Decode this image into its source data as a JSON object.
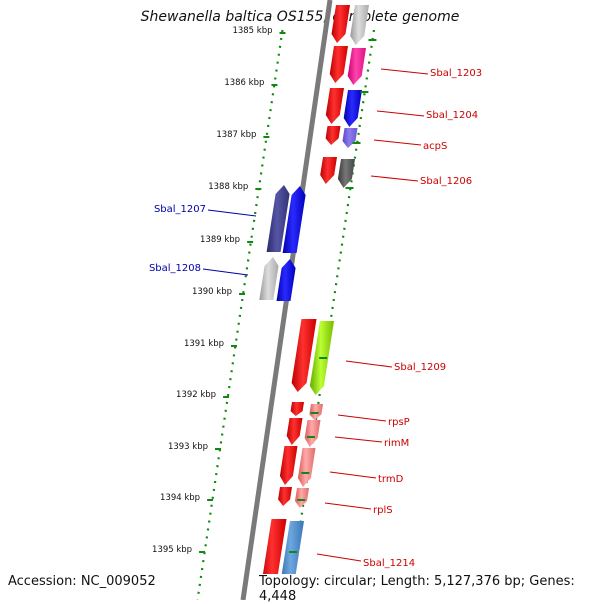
{
  "title": "Shewanella baltica OS155, complete genome",
  "footer": {
    "accession": "Accession: NC_009052",
    "topology": "Topology: circular; Length: 5,127,376 bp; Genes: 4,448"
  },
  "ticks": [
    {
      "label": "1385 kbp"
    },
    {
      "label": "1386 kbp"
    },
    {
      "label": "1387 kbp"
    },
    {
      "label": "1388 kbp"
    },
    {
      "label": "1389 kbp"
    },
    {
      "label": "1390 kbp"
    },
    {
      "label": "1391 kbp"
    },
    {
      "label": "1392 kbp"
    },
    {
      "label": "1393 kbp"
    },
    {
      "label": "1394 kbp"
    },
    {
      "label": "1395 kbp"
    }
  ],
  "gene_labels": [
    {
      "name": "Sbal_1203",
      "color": "#cc0000"
    },
    {
      "name": "Sbal_1204",
      "color": "#cc0000"
    },
    {
      "name": "acpS",
      "color": "#cc0000"
    },
    {
      "name": "Sbal_1206",
      "color": "#cc0000"
    },
    {
      "name": "Sbal_1207",
      "color": "#0000aa"
    },
    {
      "name": "Sbal_1208",
      "color": "#0000aa"
    },
    {
      "name": "Sbal_1209",
      "color": "#cc0000"
    },
    {
      "name": "rpsP",
      "color": "#cc0000"
    },
    {
      "name": "rimM",
      "color": "#cc0000"
    },
    {
      "name": "trmD",
      "color": "#cc0000"
    },
    {
      "name": "rplS",
      "color": "#cc0000"
    },
    {
      "name": "Sbal_1214",
      "color": "#cc0000"
    }
  ],
  "colors": {
    "backbone": "#7a7a7a",
    "tick_dots": "#118811",
    "strand_forward": "#ff0000",
    "strand_reverse": "#0000ff"
  }
}
